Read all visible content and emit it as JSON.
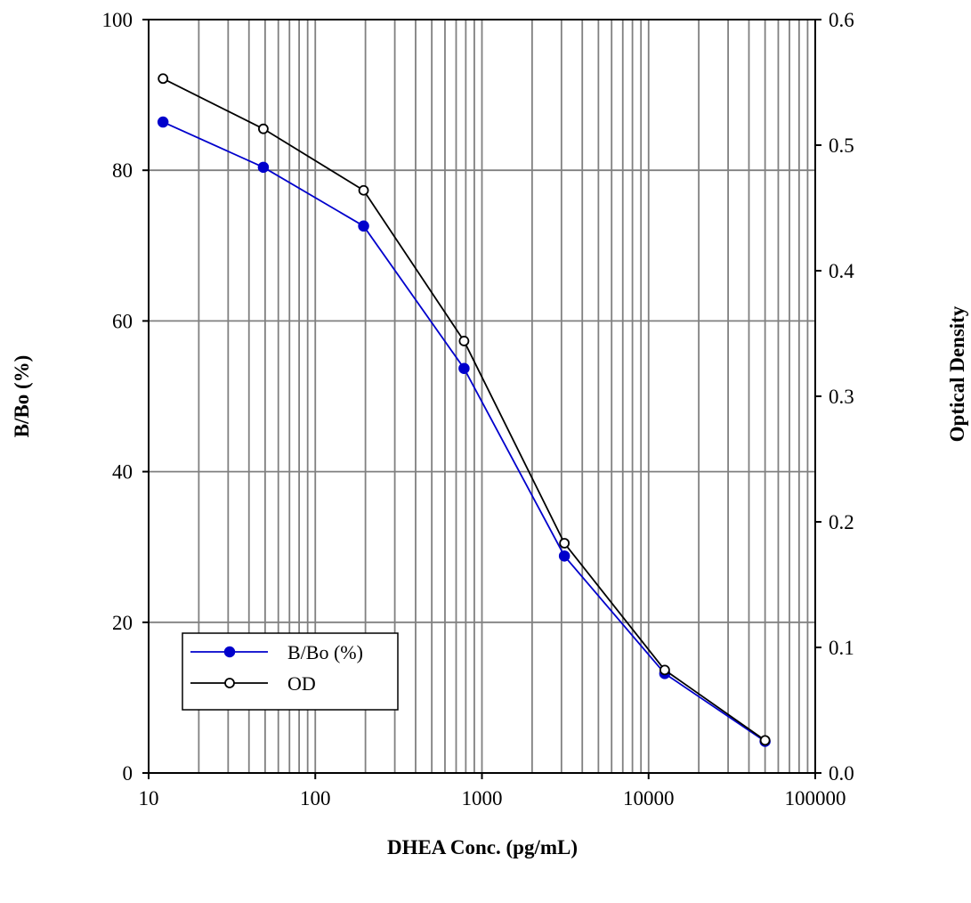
{
  "chart_data": {
    "type": "line",
    "xlabel": "DHEA Conc. (pg/mL)",
    "ylabel": "B/Bo (%)",
    "y2label": "Optical Density",
    "x_scale": "log",
    "xlim": [
      10,
      100000
    ],
    "ylim": [
      0,
      100
    ],
    "y2lim": [
      0.0,
      0.6
    ],
    "x_ticks": [
      "10",
      "100",
      "1000",
      "10000",
      "100000"
    ],
    "y_ticks": [
      "0",
      "20",
      "40",
      "60",
      "80",
      "100"
    ],
    "y2_ticks": [
      "0.0",
      "0.1",
      "0.2",
      "0.3",
      "0.4",
      "0.5",
      "0.6"
    ],
    "grid": true,
    "legend_position": "bottom-left",
    "series": [
      {
        "name": "B/Bo (%)",
        "axis": "left",
        "color": "#0000cc",
        "marker": "filled-circle",
        "x": [
          12.2,
          48.8,
          195,
          781,
          3125,
          12500,
          50000
        ],
        "y": [
          86.4,
          80.4,
          72.6,
          53.7,
          28.8,
          13.2,
          4.2
        ]
      },
      {
        "name": "OD",
        "axis": "right",
        "color": "#000000",
        "marker": "open-circle",
        "x": [
          12.2,
          48.8,
          195,
          781,
          3125,
          12500,
          50000
        ],
        "y": [
          0.553,
          0.513,
          0.464,
          0.344,
          0.183,
          0.082,
          0.026
        ]
      }
    ]
  }
}
